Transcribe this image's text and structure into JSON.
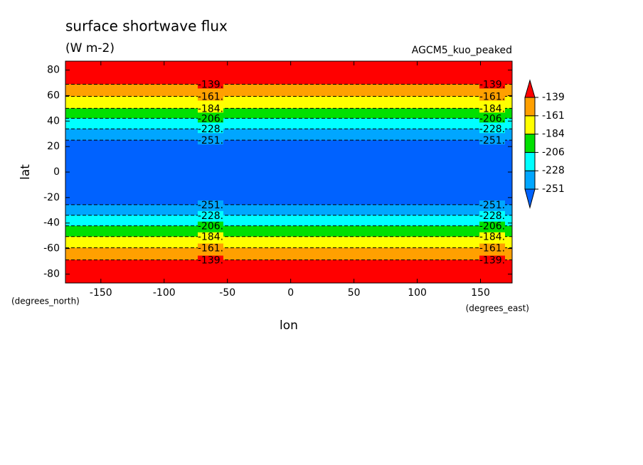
{
  "chart_data": {
    "type": "contour",
    "title": "surface shortwave flux",
    "subtitle": "(W m-2)",
    "dataset": "AGCM5_kuo_peaked",
    "x_label": "lon",
    "y_label": "lat",
    "x_units": "(degrees_east)",
    "y_units": "(degrees_north)",
    "xlim": [
      -178,
      175
    ],
    "ylim": [
      -87,
      87
    ],
    "xticks": [
      -150,
      -100,
      -50,
      0,
      50,
      100,
      150
    ],
    "yticks": [
      -80,
      -60,
      -40,
      -20,
      0,
      20,
      40,
      60,
      80
    ],
    "colors": [
      "#0062ff",
      "#00a6ff",
      "#00ffff",
      "#00e000",
      "#ffff00",
      "#ffa000",
      "#ff0000"
    ],
    "contours": [
      {
        "level": -251,
        "label": "-251.",
        "lats": [
          25,
          -25.6
        ]
      },
      {
        "level": -228,
        "label": "-228.",
        "lats": [
          33.9,
          -33.9
        ]
      },
      {
        "level": -206,
        "label": "-206.",
        "lats": [
          42.2,
          -42.2
        ]
      },
      {
        "level": -184,
        "label": "-184.",
        "lats": [
          50,
          -50.6
        ]
      },
      {
        "level": -161,
        "label": "-161.",
        "lats": [
          59.4,
          -59.4
        ]
      },
      {
        "level": -139,
        "label": "-139.",
        "lats": [
          68.9,
          -68.9
        ]
      }
    ]
  }
}
